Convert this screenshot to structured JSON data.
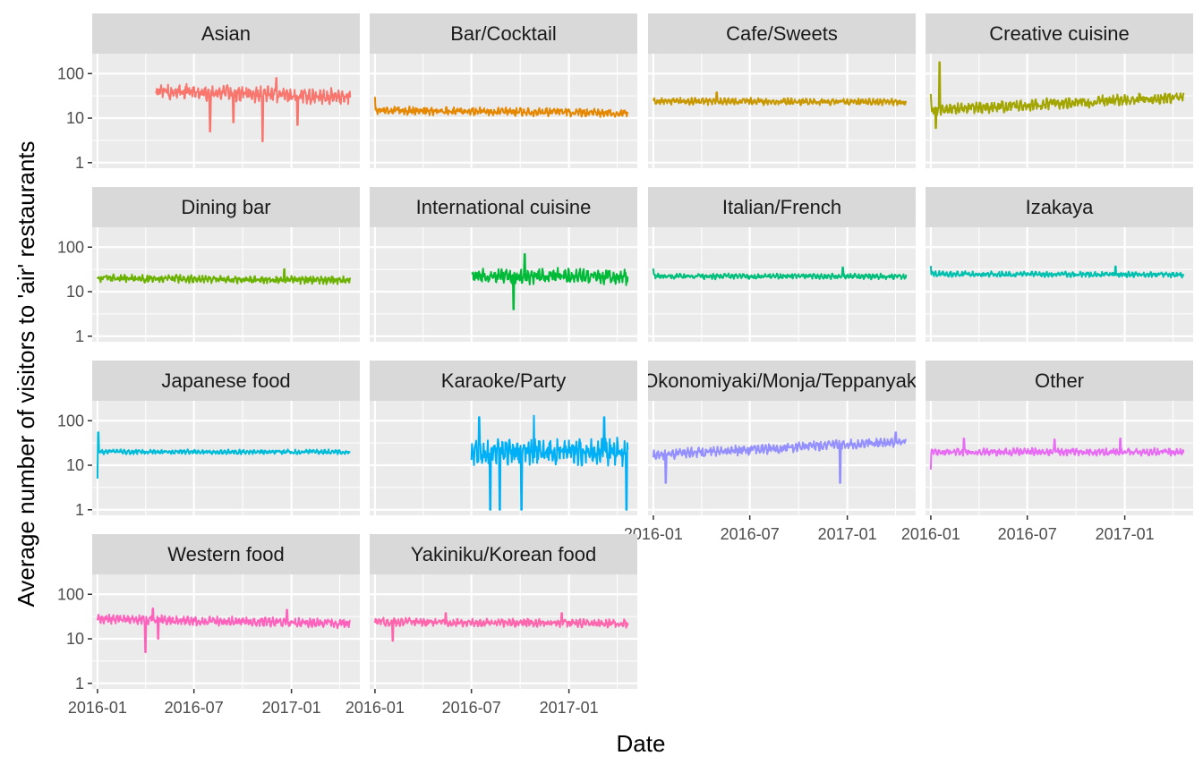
{
  "chart_data": {
    "type": "line",
    "facet": {
      "ncol": 4,
      "nrow": 4,
      "shared_scales": true
    },
    "xlabel": "Date",
    "ylabel": "Average number of visitors to 'air' restaurants",
    "x_range": [
      "2015-12-22",
      "2017-05-10"
    ],
    "x_ticks": [
      "2016-01-01",
      "2016-07-01",
      "2017-01-01"
    ],
    "x_tick_labels": [
      "2016-01",
      "2016-07",
      "2017-01"
    ],
    "y_scale": "log10",
    "ylim": [
      0.75,
      280
    ],
    "y_ticks": [
      1,
      10,
      100
    ],
    "y_tick_labels": [
      "1",
      "10",
      "100"
    ],
    "grid": true,
    "legend": "none",
    "series": [
      {
        "name": "Asian",
        "color": "#F8766D",
        "x_start": "2016-04-20",
        "x_end": "2017-04-22",
        "level": 40,
        "trend_end": 30,
        "swing": 0.35,
        "dips": [
          [
            0.28,
            5
          ],
          [
            0.55,
            3
          ],
          [
            0.4,
            8
          ],
          [
            0.73,
            7
          ]
        ],
        "spikes": [
          [
            0.62,
            80
          ]
        ]
      },
      {
        "name": "Bar/Cocktail",
        "color": "#E58700",
        "x_start": "2016-01-01",
        "x_end": "2017-04-22",
        "level": 15,
        "trend_end": 13,
        "swing": 0.18,
        "dips": [],
        "spikes": [
          [
            0.0,
            30
          ]
        ]
      },
      {
        "name": "Cafe/Sweets",
        "color": "#C99800",
        "x_start": "2016-01-01",
        "x_end": "2017-04-22",
        "level": 24,
        "trend_end": 23,
        "swing": 0.15,
        "dips": [],
        "spikes": [
          [
            0.25,
            38
          ]
        ]
      },
      {
        "name": "Creative cuisine",
        "color": "#A3A500",
        "x_start": "2016-01-01",
        "x_end": "2017-04-22",
        "level": 15,
        "trend_end": 30,
        "swing": 0.25,
        "dips": [
          [
            0.02,
            6
          ]
        ],
        "spikes": [
          [
            0.035,
            180
          ],
          [
            0.0,
            35
          ]
        ]
      },
      {
        "name": "Dining bar",
        "color": "#6BB100",
        "x_start": "2016-01-01",
        "x_end": "2017-04-22",
        "level": 20,
        "trend_end": 18,
        "swing": 0.17,
        "dips": [],
        "spikes": [
          [
            0.74,
            32
          ]
        ]
      },
      {
        "name": "International cuisine",
        "color": "#00BA38",
        "x_start": "2016-07-01",
        "x_end": "2017-04-22",
        "level": 22,
        "trend_end": 22,
        "swing": 0.35,
        "dips": [
          [
            0.27,
            4
          ]
        ],
        "spikes": [
          [
            0.34,
            70
          ]
        ]
      },
      {
        "name": "Italian/French",
        "color": "#00BF7D",
        "x_start": "2016-01-01",
        "x_end": "2017-04-22",
        "level": 22,
        "trend_end": 22,
        "swing": 0.12,
        "dips": [
          [
            0.0,
            6
          ]
        ],
        "spikes": [
          [
            0.0,
            33
          ],
          [
            0.75,
            35
          ]
        ]
      },
      {
        "name": "Izakaya",
        "color": "#00C0AF",
        "x_start": "2016-01-01",
        "x_end": "2017-04-22",
        "level": 25,
        "trend_end": 24,
        "swing": 0.12,
        "dips": [],
        "spikes": [
          [
            0.0,
            38
          ],
          [
            0.73,
            37
          ]
        ]
      },
      {
        "name": "Japanese food",
        "color": "#00BCD8",
        "x_start": "2016-01-01",
        "x_end": "2017-04-22",
        "level": 20,
        "trend_end": 20,
        "swing": 0.1,
        "dips": [
          [
            0.0,
            5
          ]
        ],
        "spikes": [
          [
            0.003,
            55
          ]
        ]
      },
      {
        "name": "Karaoke/Party",
        "color": "#00B0F6",
        "x_start": "2016-07-01",
        "x_end": "2017-04-22",
        "level": 20,
        "trend_end": 20,
        "swing": 0.6,
        "dips": [
          [
            0.12,
            1
          ],
          [
            0.18,
            1
          ],
          [
            0.32,
            1
          ],
          [
            0.99,
            1
          ]
        ],
        "spikes": [
          [
            0.05,
            120
          ],
          [
            0.4,
            130
          ],
          [
            0.85,
            120
          ]
        ]
      },
      {
        "name": "Okonomiyaki/Monja/Teppanyaki",
        "color": "#9590FF",
        "x_start": "2016-01-01",
        "x_end": "2017-04-22",
        "level": 17,
        "trend_end": 35,
        "swing": 0.22,
        "dips": [
          [
            0.05,
            4
          ],
          [
            0.74,
            4
          ]
        ],
        "spikes": [
          [
            0.96,
            55
          ]
        ]
      },
      {
        "name": "Other",
        "color": "#E76BF3",
        "x_start": "2016-01-01",
        "x_end": "2017-04-22",
        "level": 20,
        "trend_end": 20,
        "swing": 0.16,
        "dips": [
          [
            0.0,
            8
          ],
          [
            0.75,
            6
          ]
        ],
        "spikes": [
          [
            0.13,
            40
          ],
          [
            0.49,
            38
          ],
          [
            0.75,
            40
          ]
        ]
      },
      {
        "name": "Western food",
        "color": "#FF62BC",
        "x_start": "2016-01-01",
        "x_end": "2017-04-22",
        "level": 28,
        "trend_end": 22,
        "swing": 0.2,
        "dips": [
          [
            0.19,
            5
          ],
          [
            0.24,
            10
          ]
        ],
        "spikes": [
          [
            0.22,
            48
          ],
          [
            0.75,
            45
          ]
        ]
      },
      {
        "name": "Yakiniku/Korean food",
        "color": "#FF65AC",
        "x_start": "2016-01-01",
        "x_end": "2017-04-22",
        "level": 24,
        "trend_end": 22,
        "swing": 0.18,
        "dips": [
          [
            0.07,
            9
          ]
        ],
        "spikes": [
          [
            0.28,
            38
          ],
          [
            0.74,
            38
          ]
        ]
      }
    ]
  }
}
